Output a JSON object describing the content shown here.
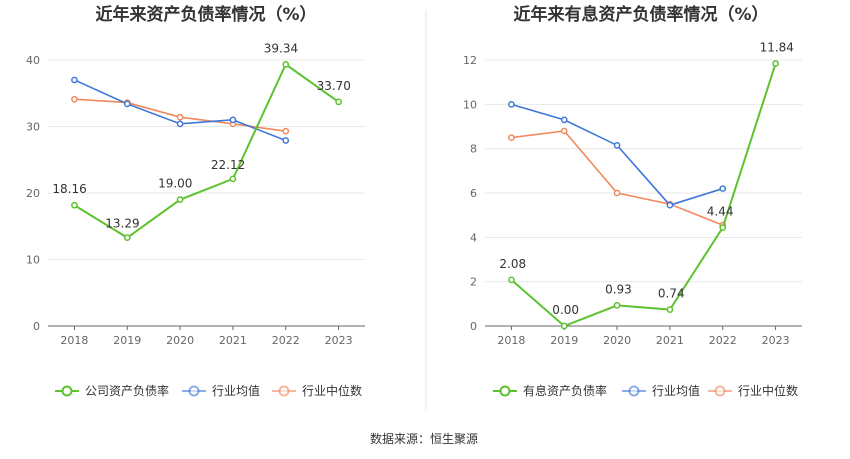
{
  "source_text": "数据来源：恒生聚源",
  "chart_data": [
    {
      "type": "line",
      "title": "近年来资产负债率情况（%）",
      "x": [
        "2018",
        "2019",
        "2020",
        "2021",
        "2022",
        "2023"
      ],
      "ylim": [
        0,
        40
      ],
      "yticks": [
        0,
        10,
        20,
        30,
        40
      ],
      "grid": true,
      "legend_position": "bottom",
      "series": [
        {
          "name": "公司资产负债率",
          "color": "#5dc22e",
          "values": [
            18.16,
            13.29,
            19.0,
            22.12,
            39.34,
            33.7
          ],
          "labels": [
            "18.16",
            "13.29",
            "19.00",
            "22.12",
            "39.34",
            "33.70"
          ]
        },
        {
          "name": "行业均值",
          "color": "#3f78d8",
          "values": [
            37.0,
            33.4,
            30.4,
            31.0,
            27.9,
            null
          ]
        },
        {
          "name": "行业中位数",
          "color": "#f08a5d",
          "values": [
            34.1,
            33.6,
            31.4,
            30.4,
            29.3,
            null
          ]
        }
      ]
    },
    {
      "type": "line",
      "title": "近年来有息资产负债率情况（%）",
      "x": [
        "2018",
        "2019",
        "2020",
        "2021",
        "2022",
        "2023"
      ],
      "ylim": [
        0,
        12
      ],
      "yticks": [
        0,
        2,
        4,
        6,
        8,
        10,
        12
      ],
      "grid": true,
      "legend_position": "bottom",
      "series": [
        {
          "name": "有息资产负债率",
          "color": "#5dc22e",
          "values": [
            2.08,
            0.0,
            0.93,
            0.74,
            4.44,
            11.84
          ],
          "labels": [
            "2.08",
            "0.00",
            "0.93",
            "0.74",
            "4.44",
            "11.84"
          ]
        },
        {
          "name": "行业均值",
          "color": "#3f78d8",
          "values": [
            10.0,
            9.3,
            8.15,
            5.45,
            6.2,
            null
          ]
        },
        {
          "name": "行业中位数",
          "color": "#f08a5d",
          "values": [
            8.5,
            8.8,
            6.0,
            5.5,
            4.55,
            null
          ]
        }
      ]
    }
  ]
}
